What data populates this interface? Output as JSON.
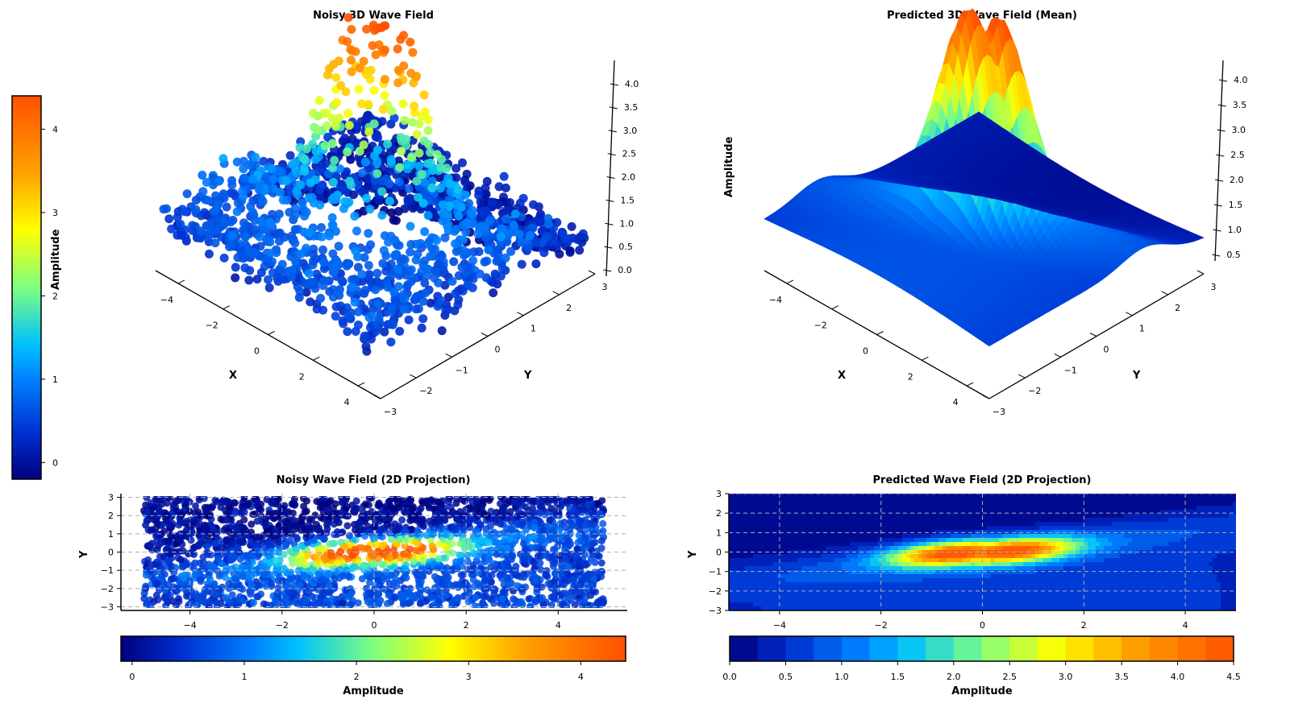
{
  "chart_data": [
    {
      "type": "scatter",
      "title": "Noisy 3D Wave Field",
      "xlabel": "X",
      "ylabel": "Y",
      "zlabel": "",
      "xlim": [
        -5,
        5
      ],
      "ylim": [
        -3,
        3
      ],
      "zlim": [
        0,
        4.3
      ],
      "x_ticks": [
        -4,
        -2,
        0,
        2,
        4
      ],
      "y_ticks": [
        -3,
        -2,
        -1,
        0,
        1,
        2,
        3
      ],
      "z_ticks": [
        0.0,
        0.5,
        1.0,
        1.5,
        2.0,
        2.5,
        3.0,
        3.5,
        4.0
      ],
      "x_tick_labels": [
        "−4",
        "−2",
        "0",
        "2",
        "4"
      ],
      "y_tick_labels": [
        "−3",
        "−2",
        "−1",
        "0",
        "1",
        "2",
        "3"
      ],
      "z_tick_labels": [
        "0.0",
        "0.5",
        "1.0",
        "1.5",
        "2.0",
        "2.5",
        "3.0",
        "3.5",
        "4.0"
      ],
      "description_function": "approx peak ~4.3 near origin, elongated along diagonal; noisy points"
    },
    {
      "type": "surface",
      "title": "Predicted 3D Wave Field (Mean)",
      "xlabel": "X",
      "ylabel": "Y",
      "zlabel": "Amplitude",
      "xlim": [
        -5,
        5
      ],
      "ylim": [
        -3,
        3
      ],
      "zlim": [
        0.2,
        4.3
      ],
      "x_ticks": [
        -4,
        -2,
        0,
        2,
        4
      ],
      "y_ticks": [
        -3,
        -2,
        -1,
        0,
        1,
        2,
        3
      ],
      "z_ticks": [
        0.5,
        1.0,
        1.5,
        2.0,
        2.5,
        3.0,
        3.5,
        4.0
      ],
      "x_tick_labels": [
        "−4",
        "−2",
        "0",
        "2",
        "4"
      ],
      "y_tick_labels": [
        "−3",
        "−2",
        "−1",
        "0",
        "1",
        "2",
        "3"
      ],
      "z_tick_labels": [
        "0.5",
        "1.0",
        "1.5",
        "2.0",
        "2.5",
        "3.0",
        "3.5",
        "4.0"
      ]
    },
    {
      "type": "heatmap",
      "title": "Noisy Wave Field (2D Projection)",
      "xlabel": "",
      "ylabel": "Y",
      "xlim": [
        -5.5,
        5.5
      ],
      "ylim": [
        -3.2,
        3.2
      ],
      "x_ticks": [
        -4,
        -2,
        0,
        2,
        4
      ],
      "y_ticks": [
        -3,
        -2,
        -1,
        0,
        1,
        2,
        3
      ],
      "x_tick_labels": [
        "−4",
        "−2",
        "0",
        "2",
        "4"
      ],
      "y_tick_labels": [
        "−3",
        "−2",
        "−1",
        "0",
        "1",
        "2",
        "3"
      ],
      "grid": true
    },
    {
      "type": "heatmap",
      "title": "Predicted Wave Field (2D Projection)",
      "xlabel": "",
      "ylabel": "Y",
      "xlim": [
        -5,
        5
      ],
      "ylim": [
        -3,
        3
      ],
      "x_ticks": [
        -4,
        -2,
        0,
        2,
        4
      ],
      "y_ticks": [
        -3,
        -2,
        -1,
        0,
        1,
        2,
        3
      ],
      "x_tick_labels": [
        "−4",
        "−2",
        "0",
        "2",
        "4"
      ],
      "y_tick_labels": [
        "−3",
        "−2",
        "−1",
        "0",
        "1",
        "2",
        "3"
      ],
      "grid": true,
      "levels": [
        0.0,
        0.25,
        0.5,
        0.75,
        1.0,
        1.25,
        1.5,
        1.75,
        2.0,
        2.25,
        2.5,
        2.75,
        3.0,
        3.25,
        3.5,
        3.75,
        4.0,
        4.25,
        4.5
      ]
    }
  ],
  "colorbars": {
    "left": {
      "label": "Amplitude",
      "ticks": [
        "0",
        "1",
        "2",
        "3",
        "4"
      ],
      "range": [
        -0.2,
        4.4
      ]
    },
    "bottom_left": {
      "label": "Amplitude",
      "ticks": [
        "0",
        "1",
        "2",
        "3",
        "4"
      ],
      "range": [
        -0.1,
        4.4
      ]
    },
    "bottom_right": {
      "label": "Amplitude",
      "ticks": [
        "0.0",
        "0.5",
        "1.0",
        "1.5",
        "2.0",
        "2.5",
        "3.0",
        "3.5",
        "4.0",
        "4.5"
      ],
      "range": [
        0,
        4.5
      ]
    }
  },
  "colors": {
    "colormap": [
      "#00007f",
      "#0040ff",
      "#00c0ff",
      "#7fff7f",
      "#ffff00",
      "#ff8000",
      "#d00000"
    ],
    "grid": "#b0b0b0"
  }
}
